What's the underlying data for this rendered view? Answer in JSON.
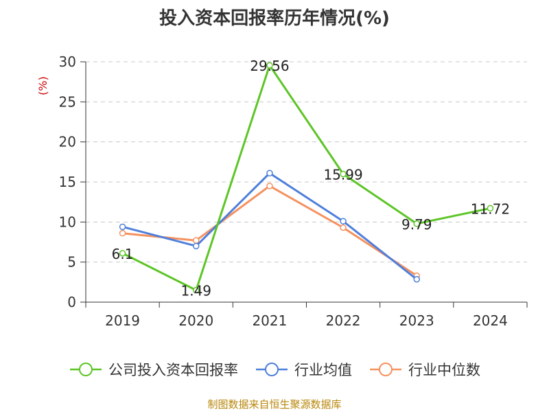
{
  "title": "投入资本回报率历年情况(%)",
  "source": "制图数据来自恒生聚源数据库",
  "chart_data": {
    "type": "line",
    "title": "投入资本回报率历年情况(%)",
    "xlabel": "",
    "ylabel": "(%)",
    "categories": [
      "2019",
      "2020",
      "2021",
      "2022",
      "2023",
      "2024"
    ],
    "ylim": [
      0,
      30
    ],
    "yticks": [
      0,
      5,
      10,
      15,
      20,
      25,
      30
    ],
    "grid": true,
    "legend_position": "bottom",
    "series": [
      {
        "name": "公司投入资本回报率",
        "color": "#5cc526",
        "values": [
          6.1,
          1.49,
          29.56,
          15.99,
          9.79,
          11.72
        ],
        "labels": [
          "6.1",
          "1.49",
          "29.56",
          "15.99",
          "9.79",
          "11.72"
        ]
      },
      {
        "name": "行业均值",
        "color": "#4e7fdb",
        "values": [
          9.4,
          7.0,
          16.1,
          10.1,
          2.85,
          null
        ]
      },
      {
        "name": "行业中位数",
        "color": "#f5915f",
        "values": [
          8.6,
          7.7,
          14.5,
          9.3,
          3.3,
          null
        ]
      }
    ]
  }
}
